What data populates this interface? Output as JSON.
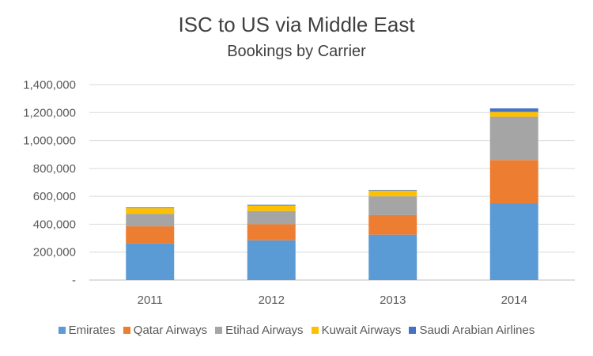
{
  "chart_data": {
    "type": "bar",
    "stacked": true,
    "title": "ISC to US via Middle East",
    "subtitle": "Bookings by Carrier",
    "categories": [
      "2011",
      "2012",
      "2013",
      "2014"
    ],
    "ylim": [
      0,
      1400000
    ],
    "y_ticks": [
      0,
      200000,
      400000,
      600000,
      800000,
      1000000,
      1200000,
      1400000
    ],
    "y_tick_labels": [
      "-",
      "200,000",
      "400,000",
      "600,000",
      "800,000",
      "1,000,000",
      "1,200,000",
      "1,400,000"
    ],
    "grid": true,
    "legend_position": "bottom",
    "series": [
      {
        "name": "Emirates",
        "color": "#5B9BD5",
        "values": [
          265000,
          285000,
          325000,
          550000
        ]
      },
      {
        "name": "Qatar Airways",
        "color": "#ED7D31",
        "values": [
          120000,
          115000,
          140000,
          310000
        ]
      },
      {
        "name": "Etihad Airways",
        "color": "#A5A5A5",
        "values": [
          90000,
          95000,
          135000,
          310000
        ]
      },
      {
        "name": "Kuwait Airways",
        "color": "#FFC000",
        "values": [
          40000,
          40000,
          40000,
          35000
        ]
      },
      {
        "name": "Saudi Arabian Airlines",
        "color": "#4472C4",
        "values": [
          5000,
          5000,
          5000,
          25000
        ]
      }
    ]
  }
}
